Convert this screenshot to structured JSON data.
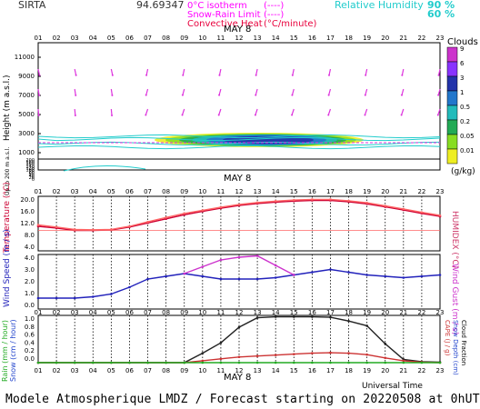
{
  "header": {
    "site": "SIRTA",
    "coords": "94.69347",
    "legend": [
      {
        "label": "0°C isotherm",
        "style": "(----)",
        "color": "#ff00ff"
      },
      {
        "label": "Snow-Rain Limit",
        "style": "(----)",
        "color": "#ff00ff"
      },
      {
        "label": "Convective Heat",
        "style": "(°C/minute)",
        "color": "#e8003c"
      }
    ],
    "rh_label": "Relative Humidity",
    "rh_levels": [
      "90 %",
      "60 %"
    ]
  },
  "hours": [
    "01",
    "02",
    "03",
    "04",
    "05",
    "06",
    "07",
    "08",
    "09",
    "10",
    "11",
    "12",
    "13",
    "14",
    "15",
    "16",
    "17",
    "18",
    "19",
    "20",
    "21",
    "22",
    "23"
  ],
  "date_label": "MAY 8",
  "clouds": {
    "title": "Clouds",
    "levels": [
      "9",
      "6",
      "3",
      "1",
      "0.5",
      "0.2",
      "0.05",
      "0.01"
    ],
    "unit": "(g/kg)",
    "colors": [
      "#cc33cc",
      "#8833ff",
      "#2233aa",
      "#2277cc",
      "#22bbbb",
      "#22aa55",
      "#88dd22",
      "#eeee22"
    ]
  },
  "panels": {
    "height": {
      "ylabel": "Height (m a.s.l.)",
      "sublabel": "Up to 200 m a.s.l.",
      "upper_ticks": [
        "11000",
        "9000",
        "7000",
        "5000",
        "3000",
        "1000"
      ],
      "lower_ticks": [
        "200",
        "180",
        "160",
        "140",
        "120",
        "100",
        "80",
        "60",
        "40",
        "20",
        "0"
      ]
    },
    "temperature": {
      "ylabel": "Temperature (°C)",
      "right_label": "HUMIDEX (°C)",
      "ticks": [
        "20.0",
        "16.0",
        "12.0",
        "8.0",
        "4.0"
      ]
    },
    "wind": {
      "ylabel": "Wind Speed (m / s)",
      "right_label": "Wind Gust (m / s)",
      "ticks": [
        "4.0",
        "3.0",
        "2.0",
        "1.0",
        "0.0"
      ]
    },
    "rain": {
      "ylabel_rain": "Rain (mm / hour)",
      "ylabel_snow": "Snow (cm / hour)",
      "right_cape": "CAPE (J / g)",
      "right_snow": "Snow Depth (cm)",
      "right_cloud": "Cloud Fraction",
      "ticks": [
        "1.0",
        "0.8",
        "0.6",
        "0.4",
        "0.2",
        "0.0"
      ],
      "xlabel": "Universal Time"
    }
  },
  "chart_data": [
    {
      "type": "line",
      "title": "",
      "ylabel": "Temperature (°C)",
      "ylim": [
        4,
        20
      ],
      "x": [
        "01",
        "02",
        "03",
        "04",
        "05",
        "06",
        "07",
        "08",
        "09",
        "10",
        "11",
        "12",
        "13",
        "14",
        "15",
        "16",
        "17",
        "18",
        "19",
        "20",
        "21",
        "22",
        "23"
      ],
      "series": [
        {
          "name": "Temperature",
          "color": "#cc0033",
          "values": [
            11.2,
            10.7,
            10.0,
            10.0,
            10.1,
            11.0,
            12.2,
            13.4,
            14.6,
            15.6,
            16.5,
            17.3,
            17.9,
            18.3,
            18.6,
            18.8,
            18.8,
            18.4,
            17.8,
            16.9,
            16.0,
            15.0,
            14.1
          ]
        },
        {
          "name": "HUMIDEX",
          "color": "#ff6666",
          "values": [
            11.6,
            11.0,
            10.3,
            10.2,
            10.3,
            11.2,
            12.5,
            13.8,
            15.0,
            15.9,
            16.8,
            17.6,
            18.2,
            18.6,
            18.9,
            19.1,
            19.1,
            18.7,
            18.1,
            17.2,
            16.3,
            15.3,
            14.4
          ]
        }
      ]
    },
    {
      "type": "line",
      "title": "",
      "ylabel": "Wind Speed (m / s)",
      "ylim": [
        0,
        4
      ],
      "x": [
        "01",
        "02",
        "03",
        "04",
        "05",
        "06",
        "07",
        "08",
        "09",
        "10",
        "11",
        "12",
        "13",
        "14",
        "15",
        "16",
        "17",
        "18",
        "19",
        "20",
        "21",
        "22",
        "23"
      ],
      "series": [
        {
          "name": "Wind Speed",
          "color": "#2222bb",
          "values": [
            0.8,
            0.8,
            0.8,
            0.9,
            1.1,
            1.6,
            2.2,
            2.4,
            2.6,
            2.4,
            2.2,
            2.2,
            2.2,
            2.3,
            2.5,
            2.7,
            2.9,
            2.7,
            2.5,
            2.4,
            2.3,
            2.4,
            2.5
          ]
        },
        {
          "name": "Wind Gust",
          "color": "#cc33cc",
          "values": [
            null,
            null,
            null,
            null,
            null,
            null,
            null,
            null,
            2.6,
            3.1,
            3.6,
            3.8,
            3.9,
            3.2,
            2.5,
            null,
            null,
            null,
            null,
            null,
            null,
            null,
            null
          ]
        }
      ]
    },
    {
      "type": "line",
      "title": "",
      "xlabel": "Universal Time",
      "ylim": [
        0,
        1
      ],
      "x": [
        "01",
        "02",
        "03",
        "04",
        "05",
        "06",
        "07",
        "08",
        "09",
        "10",
        "11",
        "12",
        "13",
        "14",
        "15",
        "16",
        "17",
        "18",
        "19",
        "20",
        "21",
        "22",
        "23"
      ],
      "series": [
        {
          "name": "Cloud Fraction",
          "color": "#222222",
          "values": [
            0,
            0,
            0,
            0,
            0,
            0,
            0,
            0,
            0,
            0.2,
            0.42,
            0.75,
            0.95,
            0.97,
            0.97,
            0.97,
            0.96,
            0.88,
            0.78,
            0.4,
            0.07,
            0.02,
            0.01
          ]
        },
        {
          "name": "CAPE",
          "color": "#cc3333",
          "values": [
            0,
            0,
            0,
            0,
            0,
            0,
            0,
            0,
            0,
            0.04,
            0.08,
            0.12,
            0.14,
            0.16,
            0.18,
            0.2,
            0.21,
            0.2,
            0.17,
            0.1,
            0.04,
            0.01,
            0
          ]
        },
        {
          "name": "Rain",
          "color": "#22aa22",
          "values": [
            0,
            0,
            0,
            0,
            0,
            0,
            0,
            0,
            0,
            0,
            0,
            0,
            0,
            0,
            0,
            0,
            0,
            0,
            0,
            0,
            0,
            0,
            0
          ]
        }
      ]
    }
  ],
  "footer": "Modele Atmospherique LMDZ / Forecast starting on 20220508 at 0hUT"
}
